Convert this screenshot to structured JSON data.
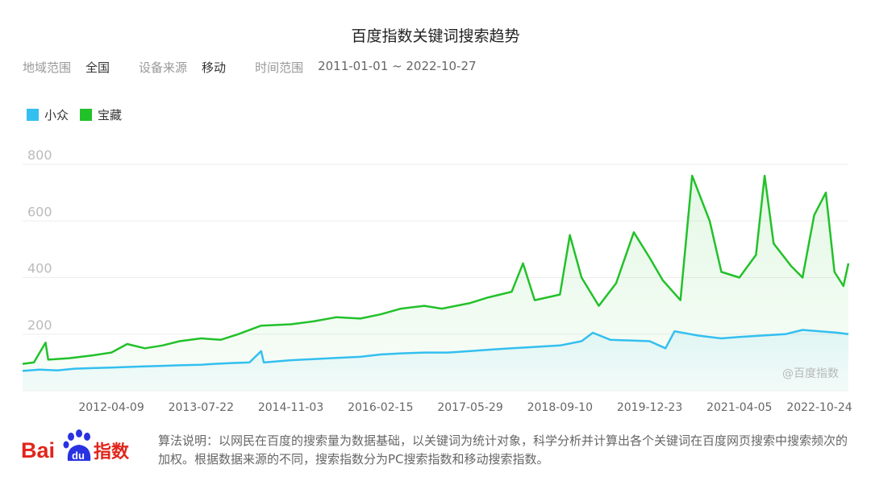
{
  "header": {
    "title": "百度指数关键词搜索趋势"
  },
  "filters": {
    "region_label": "地域范围",
    "region_value": "全国",
    "device_label": "设备来源",
    "device_value": "移动",
    "time_label": "时间范围",
    "time_value": "2011-01-01 ~ 2022-10-27"
  },
  "watermark": "@百度指数",
  "footer": {
    "note": "算法说明：以网民在百度的搜索量为数据基础，以关键词为统计对象，科学分析并计算出各个关键词在百度网页搜索中搜索频次的加权。根据数据来源的不同，搜索指数分为PC搜索指数和移动搜索指数。",
    "logo_text_bai": "Bai",
    "logo_text_du": "du",
    "logo_text_index": "指数"
  },
  "colors": {
    "series_blue": "#33bff0",
    "series_green": "#22c12a",
    "grid": "#eeeeee",
    "axis_text": "#666666",
    "logo_red": "#e1251b",
    "logo_blue": "#2932e1"
  },
  "chart_data": {
    "type": "line",
    "x_start": "2011-01-01",
    "x_end": "2022-10-27",
    "x_tick_labels": [
      "2012-04-09",
      "2013-07-22",
      "2014-11-03",
      "2016-02-15",
      "2017-05-29",
      "2018-09-10",
      "2019-12-23",
      "2021-04-05",
      "2022-10-24"
    ],
    "y_ticks": [
      200,
      400,
      600,
      800
    ],
    "ylim": [
      0,
      800
    ],
    "grid": true,
    "legend_position": "top-left",
    "series": [
      {
        "name": "小众",
        "color": "#33bff0",
        "points": [
          [
            "2011-01-01",
            70
          ],
          [
            "2011-04-01",
            75
          ],
          [
            "2011-07-01",
            72
          ],
          [
            "2011-10-01",
            78
          ],
          [
            "2012-01-01",
            80
          ],
          [
            "2012-04-09",
            82
          ],
          [
            "2012-07-01",
            84
          ],
          [
            "2012-10-01",
            86
          ],
          [
            "2013-01-01",
            88
          ],
          [
            "2013-04-01",
            90
          ],
          [
            "2013-07-22",
            92
          ],
          [
            "2013-10-01",
            95
          ],
          [
            "2014-01-01",
            98
          ],
          [
            "2014-04-01",
            100
          ],
          [
            "2014-06-01",
            140
          ],
          [
            "2014-06-15",
            100
          ],
          [
            "2014-11-03",
            108
          ],
          [
            "2015-03-01",
            112
          ],
          [
            "2015-07-01",
            116
          ],
          [
            "2015-11-01",
            120
          ],
          [
            "2016-02-15",
            128
          ],
          [
            "2016-06-01",
            132
          ],
          [
            "2016-10-01",
            135
          ],
          [
            "2017-02-01",
            135
          ],
          [
            "2017-05-29",
            140
          ],
          [
            "2017-09-01",
            145
          ],
          [
            "2018-01-01",
            150
          ],
          [
            "2018-05-01",
            155
          ],
          [
            "2018-09-10",
            160
          ],
          [
            "2019-01-01",
            175
          ],
          [
            "2019-03-01",
            205
          ],
          [
            "2019-06-01",
            180
          ],
          [
            "2019-09-01",
            178
          ],
          [
            "2019-12-23",
            175
          ],
          [
            "2020-03-15",
            150
          ],
          [
            "2020-05-01",
            210
          ],
          [
            "2020-09-01",
            195
          ],
          [
            "2021-01-01",
            185
          ],
          [
            "2021-04-05",
            190
          ],
          [
            "2021-08-01",
            195
          ],
          [
            "2021-12-01",
            200
          ],
          [
            "2022-03-01",
            215
          ],
          [
            "2022-06-01",
            210
          ],
          [
            "2022-09-01",
            205
          ],
          [
            "2022-10-27",
            200
          ]
        ]
      },
      {
        "name": "宝藏",
        "color": "#22c12a",
        "points": [
          [
            "2011-01-01",
            95
          ],
          [
            "2011-03-01",
            100
          ],
          [
            "2011-05-01",
            170
          ],
          [
            "2011-05-15",
            110
          ],
          [
            "2011-09-01",
            115
          ],
          [
            "2012-01-01",
            125
          ],
          [
            "2012-04-09",
            135
          ],
          [
            "2012-07-01",
            165
          ],
          [
            "2012-10-01",
            150
          ],
          [
            "2013-01-01",
            160
          ],
          [
            "2013-04-01",
            175
          ],
          [
            "2013-07-22",
            185
          ],
          [
            "2013-11-01",
            180
          ],
          [
            "2014-02-01",
            200
          ],
          [
            "2014-06-01",
            230
          ],
          [
            "2014-11-03",
            235
          ],
          [
            "2015-03-01",
            245
          ],
          [
            "2015-07-01",
            260
          ],
          [
            "2015-11-01",
            255
          ],
          [
            "2016-02-15",
            270
          ],
          [
            "2016-06-01",
            290
          ],
          [
            "2016-10-01",
            300
          ],
          [
            "2017-01-01",
            290
          ],
          [
            "2017-05-29",
            310
          ],
          [
            "2017-09-01",
            330
          ],
          [
            "2018-01-01",
            350
          ],
          [
            "2018-03-01",
            450
          ],
          [
            "2018-05-01",
            320
          ],
          [
            "2018-09-10",
            340
          ],
          [
            "2018-11-01",
            550
          ],
          [
            "2019-01-01",
            400
          ],
          [
            "2019-04-01",
            300
          ],
          [
            "2019-07-01",
            380
          ],
          [
            "2019-10-01",
            560
          ],
          [
            "2019-12-23",
            470
          ],
          [
            "2020-03-01",
            390
          ],
          [
            "2020-06-01",
            320
          ],
          [
            "2020-08-01",
            760
          ],
          [
            "2020-11-01",
            600
          ],
          [
            "2021-01-01",
            420
          ],
          [
            "2021-04-05",
            400
          ],
          [
            "2021-07-01",
            480
          ],
          [
            "2021-08-15",
            760
          ],
          [
            "2021-10-01",
            520
          ],
          [
            "2022-01-01",
            440
          ],
          [
            "2022-03-01",
            400
          ],
          [
            "2022-05-01",
            620
          ],
          [
            "2022-07-01",
            700
          ],
          [
            "2022-08-15",
            420
          ],
          [
            "2022-10-01",
            370
          ],
          [
            "2022-10-27",
            450
          ]
        ]
      }
    ]
  }
}
